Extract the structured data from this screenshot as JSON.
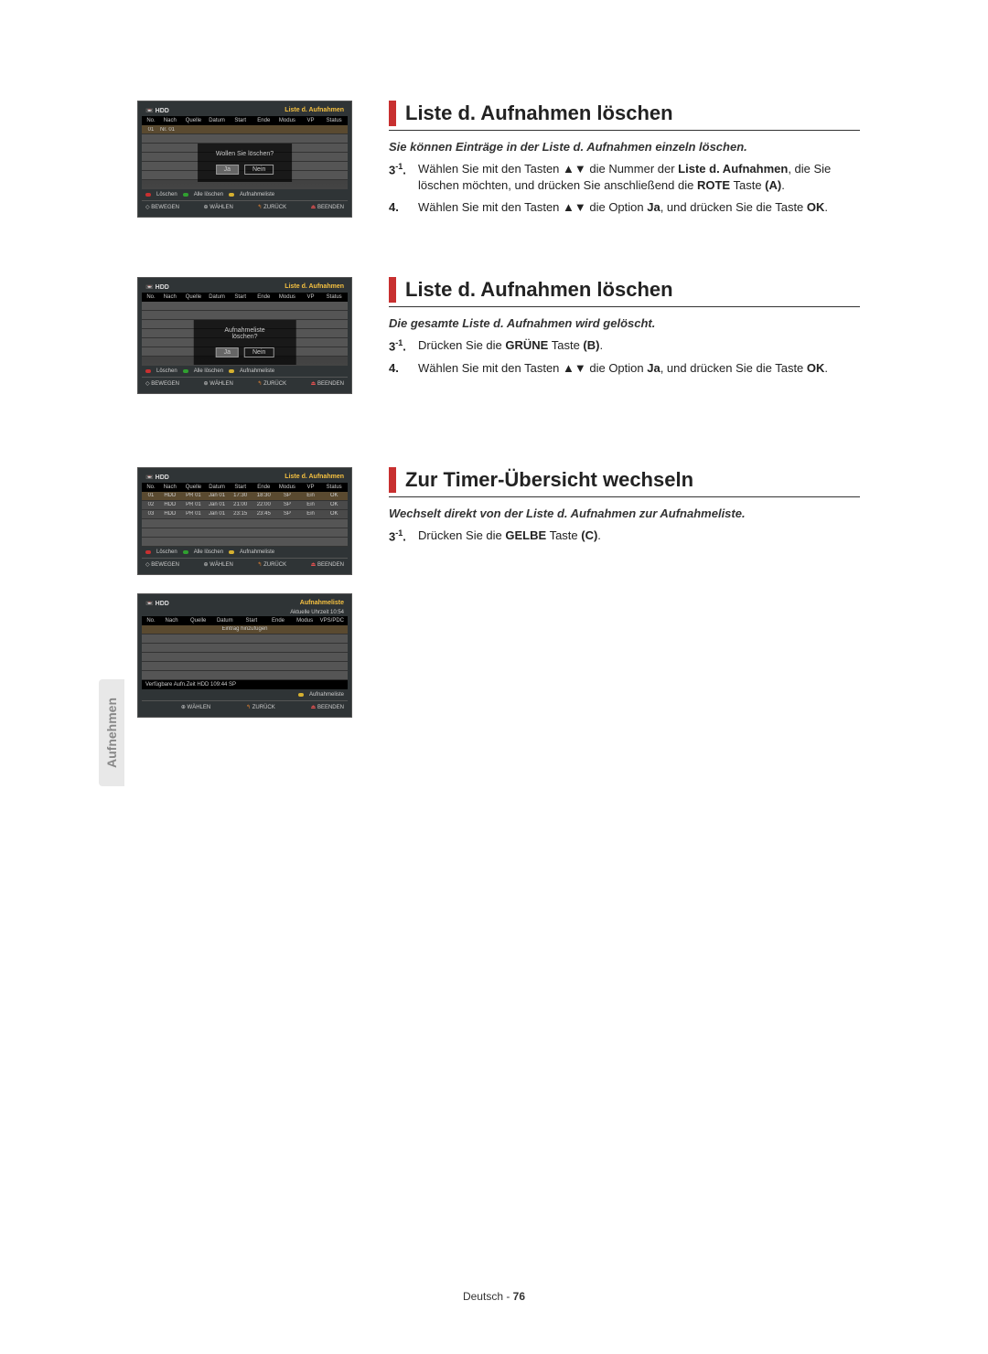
{
  "sideTab": "Aufnehmen",
  "screens": {
    "hdd_label": "HDD",
    "list_title": "Liste d. Aufnahmen",
    "aufnahmeliste_title": "Aufnahmeliste",
    "cols": {
      "no": "No.",
      "nach": "Nach",
      "quelle": "Quelle",
      "datum": "Datum",
      "start": "Start",
      "ende": "Ende",
      "modus": "Modus",
      "vp": "VP",
      "status": "Status",
      "vpspdc": "VPS/PDC"
    },
    "row_label": "Nr. 01",
    "dialog1": "Wollen Sie löschen?",
    "dialog2": "Aufnahmeliste löschen?",
    "ja": "Ja",
    "nein": "Nein",
    "legend": {
      "loeschen": "Löschen",
      "alle_loeschen": "Alle löschen",
      "aufnahmeliste": "Aufnahmeliste"
    },
    "nav": {
      "bewegen": "BEWEGEN",
      "waehlen": "WÄHLEN",
      "zurueck": "ZURÜCK",
      "beenden": "BEENDEN"
    },
    "data_rows": [
      {
        "no": "01",
        "nach": "HDD",
        "src": "PR 01",
        "date": "Jan 01",
        "start": "17:30",
        "end": "18:30",
        "mode": "SP",
        "vp": "Ein",
        "status": "OK"
      },
      {
        "no": "02",
        "nach": "HDD",
        "src": "PR 01",
        "date": "Jan 01",
        "start": "21:00",
        "end": "22:00",
        "mode": "SP",
        "vp": "Ein",
        "status": "OK"
      },
      {
        "no": "03",
        "nach": "HDD",
        "src": "PR 01",
        "date": "Jan 01",
        "start": "23:15",
        "end": "23:45",
        "mode": "SP",
        "vp": "Ein",
        "status": "OK"
      }
    ],
    "uhrzeit": "Aktuelle Uhrzeit 10:54",
    "eintrag": "Eintrag hinzufügen",
    "verfuegbar": "Verfügbare Aufn.Zeit  HDD  109:44 SP"
  },
  "sections": [
    {
      "heading": "Liste d. Aufnahmen löschen",
      "subhead": "Sie können Einträge in der Liste d. Aufnahmen einzeln löschen.",
      "steps": [
        {
          "num": "3",
          "sup": "-1",
          "text_parts": [
            "Wählen Sie mit den Tasten ▲▼ die Nummer der ",
            {
              "b": "Liste d. Aufnahmen"
            },
            ", die Sie löschen möchten, und drücken Sie anschließend die ",
            {
              "b": "ROTE"
            },
            " Taste ",
            {
              "b": "(A)"
            },
            "."
          ]
        },
        {
          "num": "4.",
          "text_parts": [
            "Wählen Sie mit den Tasten ▲▼ die Option ",
            {
              "b": "Ja"
            },
            ", und drücken Sie die Taste ",
            {
              "b": "OK"
            },
            "."
          ]
        }
      ]
    },
    {
      "heading": "Liste d. Aufnahmen löschen",
      "subhead": "Die gesamte Liste d. Aufnahmen wird gelöscht.",
      "steps": [
        {
          "num": "3",
          "sup": "-1",
          "text_parts": [
            "Drücken Sie die ",
            {
              "b": "GRÜNE"
            },
            " Taste ",
            {
              "b": "(B)"
            },
            "."
          ]
        },
        {
          "num": "4.",
          "text_parts": [
            "Wählen Sie mit den Tasten ▲▼ die Option ",
            {
              "b": "Ja"
            },
            ", und drücken Sie die Taste ",
            {
              "b": "OK"
            },
            "."
          ]
        }
      ]
    },
    {
      "heading": "Zur Timer-Übersicht wechseln",
      "subhead": "Wechselt direkt von der Liste d. Aufnahmen zur Aufnahmeliste.",
      "steps": [
        {
          "num": "3",
          "sup": "-1",
          "text_parts": [
            "Drücken Sie die ",
            {
              "b": "GELBE"
            },
            " Taste ",
            {
              "b": "(C)"
            },
            "."
          ]
        }
      ]
    }
  ],
  "footer": {
    "lang": "Deutsch",
    "sep": " - ",
    "page": "76"
  }
}
